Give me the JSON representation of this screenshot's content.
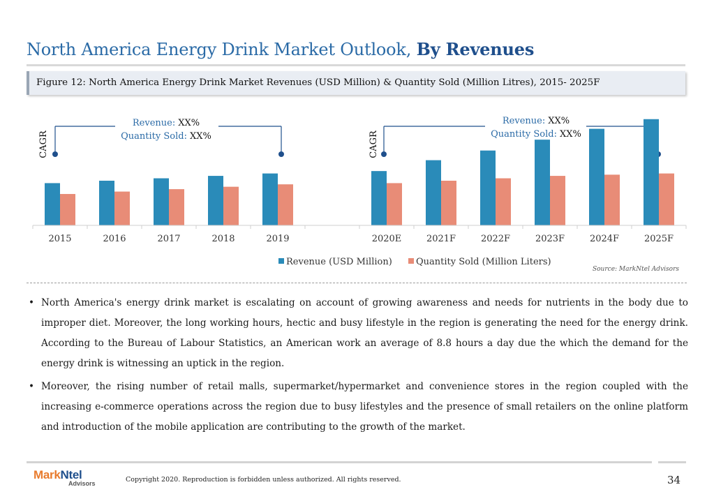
{
  "header": {
    "title_regular": "North America Energy Drink Market Outlook,",
    "title_bold": "By Revenues",
    "figure_caption": "Figure 12: North America Energy Drink Market Revenues (USD Million) & Quantity Sold (Million Litres), 2015- 2025F"
  },
  "cagr_left": {
    "label": "CAGR",
    "revenue_label": "Revenue:",
    "revenue_value": "XX%",
    "quantity_label": "Quantity Sold:",
    "quantity_value": "XX%"
  },
  "cagr_right": {
    "label": "CAGR",
    "revenue_label": "Revenue:",
    "revenue_value": "XX%",
    "quantity_label": "Quantity Sold:",
    "quantity_value": "XX%"
  },
  "chart_data": {
    "type": "bar",
    "categories": [
      "2015",
      "2016",
      "2017",
      "2018",
      "2019",
      "",
      "2020E",
      "2021F",
      "2022F",
      "2023F",
      "2024F",
      "2025F"
    ],
    "series": [
      {
        "name": "Revenue (USD Million)",
        "color": "#2a8bb9",
        "values": [
          35,
          37,
          39,
          41,
          43,
          null,
          45,
          54,
          62,
          71,
          80,
          88
        ]
      },
      {
        "name": "Quantity Sold (Million Liters)",
        "color": "#e88c77",
        "values": [
          26,
          28,
          30,
          32,
          34,
          null,
          35,
          37,
          39,
          41,
          42,
          43
        ]
      }
    ],
    "ylim": [
      0,
      100
    ],
    "grid": false,
    "legend_position": "bottom"
  },
  "source": "Source: MarkNtel Advisors",
  "bullets": [
    "North America's energy drink market is escalating on account of growing awareness and needs for nutrients in the body due to improper diet. Moreover, the long working hours, hectic and busy lifestyle in the region is generating the need for the energy drink. According to the Bureau of Labour Statistics, an American work an average of 8.8 hours a day due the which the demand for the energy drink is witnessing an uptick in the region.",
    "Moreover, the rising number of retail malls, supermarket/hypermarket and convenience stores in the region coupled with the increasing e-commerce operations across the region due to busy lifestyles and the presence of small retailers on the online platform and introduction of the mobile application are contributing to the growth of the market."
  ],
  "bullet_symbol": "•",
  "footer": {
    "logo_part1": "Mark",
    "logo_part2": "Ntel",
    "logo_sub": "Advisors",
    "copyright": "Copyright 2020. Reproduction is forbidden unless authorized. All rights reserved.",
    "page_number": "34"
  }
}
